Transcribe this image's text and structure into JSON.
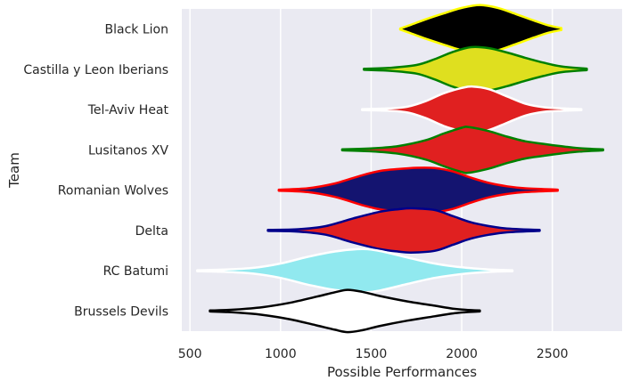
{
  "chart_data": {
    "type": "violin",
    "title": "",
    "xlabel": "Possible Performances",
    "ylabel": "Team",
    "xlim": [
      455,
      2885
    ],
    "xticks": [
      500,
      1000,
      1500,
      2000,
      2500
    ],
    "grid": true,
    "background": "#eaeaf2",
    "series": [
      {
        "name": "Black Lion",
        "fill": "#000000",
        "line": "#ffff00",
        "profile": [
          [
            1660,
            0.02
          ],
          [
            1720,
            0.18
          ],
          [
            1800,
            0.4
          ],
          [
            1900,
            0.65
          ],
          [
            2000,
            0.88
          ],
          [
            2100,
            1.0
          ],
          [
            2200,
            0.88
          ],
          [
            2300,
            0.62
          ],
          [
            2400,
            0.35
          ],
          [
            2480,
            0.15
          ],
          [
            2550,
            0.04
          ]
        ]
      },
      {
        "name": "Castilla y Leon Iberians",
        "fill": "#dfdf1f",
        "line": "#008000",
        "profile": [
          [
            1460,
            0.02
          ],
          [
            1600,
            0.06
          ],
          [
            1750,
            0.18
          ],
          [
            1850,
            0.42
          ],
          [
            1950,
            0.72
          ],
          [
            2050,
            0.92
          ],
          [
            2150,
            0.88
          ],
          [
            2250,
            0.7
          ],
          [
            2350,
            0.48
          ],
          [
            2450,
            0.28
          ],
          [
            2550,
            0.12
          ],
          [
            2690,
            0.03
          ]
        ]
      },
      {
        "name": "Tel-Aviv Heat",
        "fill": "#e02020",
        "line": "#ffffff",
        "profile": [
          [
            1450,
            0.02
          ],
          [
            1600,
            0.05
          ],
          [
            1700,
            0.12
          ],
          [
            1800,
            0.35
          ],
          [
            1900,
            0.68
          ],
          [
            2000,
            0.9
          ],
          [
            2060,
            0.96
          ],
          [
            2150,
            0.85
          ],
          [
            2250,
            0.55
          ],
          [
            2350,
            0.25
          ],
          [
            2450,
            0.1
          ],
          [
            2550,
            0.05
          ],
          [
            2660,
            0.02
          ]
        ]
      },
      {
        "name": "Lusitanos XV",
        "fill": "#e02020",
        "line": "#008000",
        "profile": [
          [
            1340,
            0.02
          ],
          [
            1500,
            0.06
          ],
          [
            1650,
            0.16
          ],
          [
            1800,
            0.4
          ],
          [
            1900,
            0.68
          ],
          [
            2000,
            0.92
          ],
          [
            2040,
            0.95
          ],
          [
            2150,
            0.78
          ],
          [
            2250,
            0.55
          ],
          [
            2350,
            0.36
          ],
          [
            2450,
            0.25
          ],
          [
            2550,
            0.15
          ],
          [
            2650,
            0.07
          ],
          [
            2780,
            0.02
          ]
        ]
      },
      {
        "name": "Romanian Wolves",
        "fill": "#141470",
        "line": "#ff0000",
        "profile": [
          [
            990,
            0.02
          ],
          [
            1150,
            0.08
          ],
          [
            1300,
            0.28
          ],
          [
            1450,
            0.62
          ],
          [
            1550,
            0.8
          ],
          [
            1650,
            0.88
          ],
          [
            1750,
            0.93
          ],
          [
            1850,
            0.92
          ],
          [
            1950,
            0.78
          ],
          [
            2050,
            0.52
          ],
          [
            2150,
            0.3
          ],
          [
            2250,
            0.16
          ],
          [
            2350,
            0.08
          ],
          [
            2530,
            0.02
          ]
        ]
      },
      {
        "name": "Delta",
        "fill": "#e02020",
        "line": "#00008b",
        "profile": [
          [
            930,
            0.02
          ],
          [
            1100,
            0.05
          ],
          [
            1250,
            0.18
          ],
          [
            1400,
            0.5
          ],
          [
            1550,
            0.78
          ],
          [
            1650,
            0.88
          ],
          [
            1720,
            0.92
          ],
          [
            1850,
            0.85
          ],
          [
            1950,
            0.6
          ],
          [
            2050,
            0.34
          ],
          [
            2150,
            0.18
          ],
          [
            2250,
            0.08
          ],
          [
            2430,
            0.02
          ]
        ]
      },
      {
        "name": "RC Batumi",
        "fill": "#91e9ef",
        "line": "#ffffff",
        "profile": [
          [
            540,
            0.02
          ],
          [
            700,
            0.05
          ],
          [
            850,
            0.12
          ],
          [
            1000,
            0.3
          ],
          [
            1150,
            0.58
          ],
          [
            1300,
            0.8
          ],
          [
            1450,
            0.9
          ],
          [
            1550,
            0.82
          ],
          [
            1700,
            0.55
          ],
          [
            1850,
            0.3
          ],
          [
            2000,
            0.14
          ],
          [
            2150,
            0.05
          ],
          [
            2280,
            0.02
          ]
        ]
      },
      {
        "name": "Brussels Devils",
        "fill": "#ffffff",
        "line": "#000000",
        "profile": [
          [
            610,
            0.02
          ],
          [
            750,
            0.06
          ],
          [
            900,
            0.16
          ],
          [
            1050,
            0.34
          ],
          [
            1200,
            0.6
          ],
          [
            1300,
            0.78
          ],
          [
            1370,
            0.88
          ],
          [
            1450,
            0.8
          ],
          [
            1550,
            0.62
          ],
          [
            1700,
            0.4
          ],
          [
            1850,
            0.22
          ],
          [
            1950,
            0.1
          ],
          [
            2020,
            0.05
          ],
          [
            2100,
            0.02
          ]
        ]
      }
    ]
  }
}
